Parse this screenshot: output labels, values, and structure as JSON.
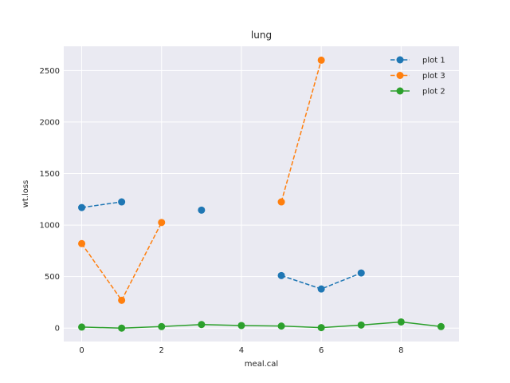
{
  "chart_data": {
    "type": "line",
    "title": "lung",
    "xlabel": "meal.cal",
    "ylabel": "wt.loss",
    "xlim": [
      -0.45,
      9.45
    ],
    "ylim": [
      -130,
      2735
    ],
    "xticks": [
      0,
      2,
      4,
      6,
      8
    ],
    "yticks": [
      0,
      500,
      1000,
      1500,
      2000,
      2500
    ],
    "grid": true,
    "legend_position": "top-right",
    "series": [
      {
        "name": "plot 1",
        "color": "#1f77b4",
        "linestyle": "dashed",
        "marker": "circle",
        "x": [
          0,
          1,
          2,
          3,
          4,
          5,
          6,
          7
        ],
        "y": [
          1170,
          1225,
          null,
          1145,
          null,
          510,
          380,
          535
        ]
      },
      {
        "name": "plot 3",
        "color": "#ff7f0e",
        "linestyle": "dashed",
        "marker": "circle",
        "x": [
          0,
          1,
          2,
          3,
          4,
          5,
          6
        ],
        "y": [
          820,
          270,
          1025,
          null,
          null,
          1225,
          2600
        ]
      },
      {
        "name": "plot 2",
        "color": "#2ca02c",
        "linestyle": "solid",
        "marker": "circle",
        "x": [
          0,
          1,
          2,
          3,
          4,
          5,
          6,
          7,
          8,
          9
        ],
        "y": [
          10,
          0,
          15,
          35,
          25,
          20,
          5,
          30,
          60,
          15
        ]
      }
    ]
  }
}
